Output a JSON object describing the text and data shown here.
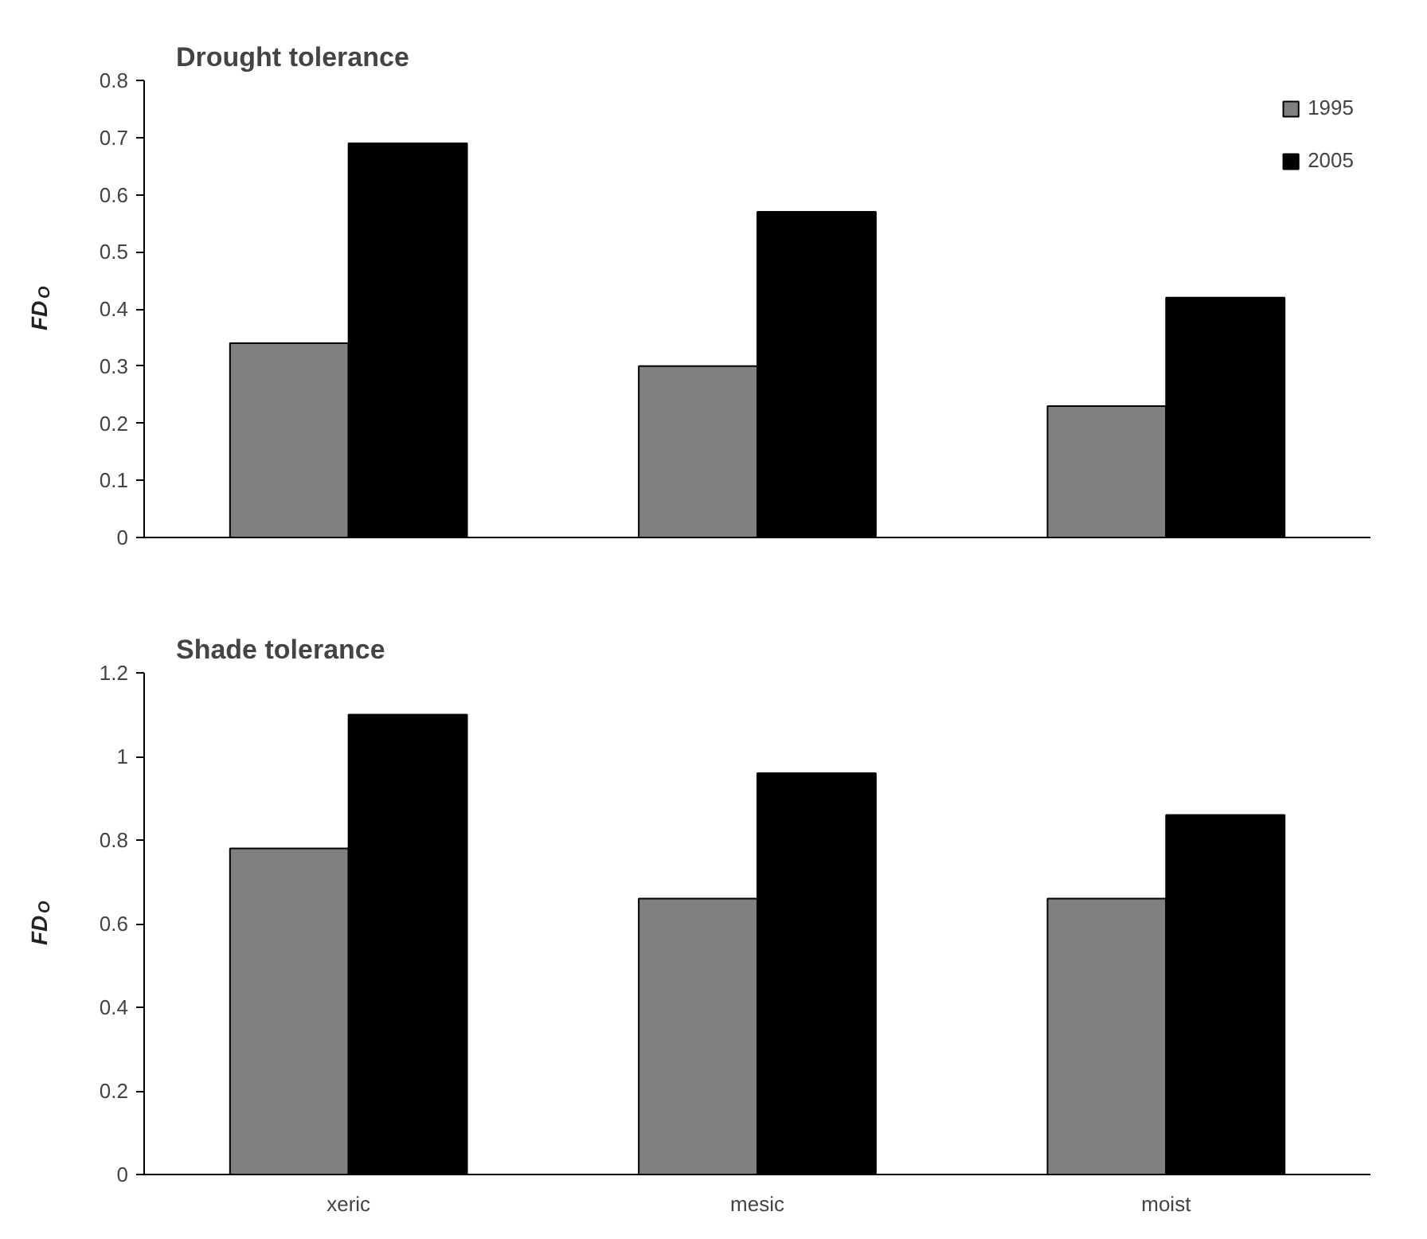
{
  "chart_data": [
    {
      "type": "bar",
      "title": "Drought tolerance",
      "ylabel": "FD$_{O}$",
      "categories": [
        null,
        null,
        null
      ],
      "series": [
        {
          "name": "1995",
          "color": "#808080",
          "values": [
            0.34,
            0.3,
            0.23
          ]
        },
        {
          "name": "2005",
          "color": "#000000",
          "values": [
            0.69,
            0.57,
            0.42
          ]
        }
      ],
      "ylim": [
        0,
        0.8
      ],
      "yticks": [
        0,
        0.1,
        0.2,
        0.3,
        0.4,
        0.5,
        0.6,
        0.7,
        0.8
      ],
      "grid": false,
      "legend": "top right",
      "tick_labels": "y"
    },
    {
      "type": "bar",
      "title": "Shade tolerance",
      "ylabel": "FD$_{O}$",
      "categories": [
        "xeric",
        "mesic",
        "moist"
      ],
      "series": [
        {
          "color": "#808080",
          "values": [
            0.78,
            0.66,
            0.66
          ]
        },
        {
          "color": "#000000",
          "values": [
            1.1,
            0.96,
            0.86
          ]
        }
      ],
      "ylim": [
        0,
        1.2
      ],
      "yticks": [
        0,
        0.2,
        0.4,
        0.6,
        0.8,
        1,
        1.2
      ],
      "grid": false,
      "legend": false
    }
  ]
}
